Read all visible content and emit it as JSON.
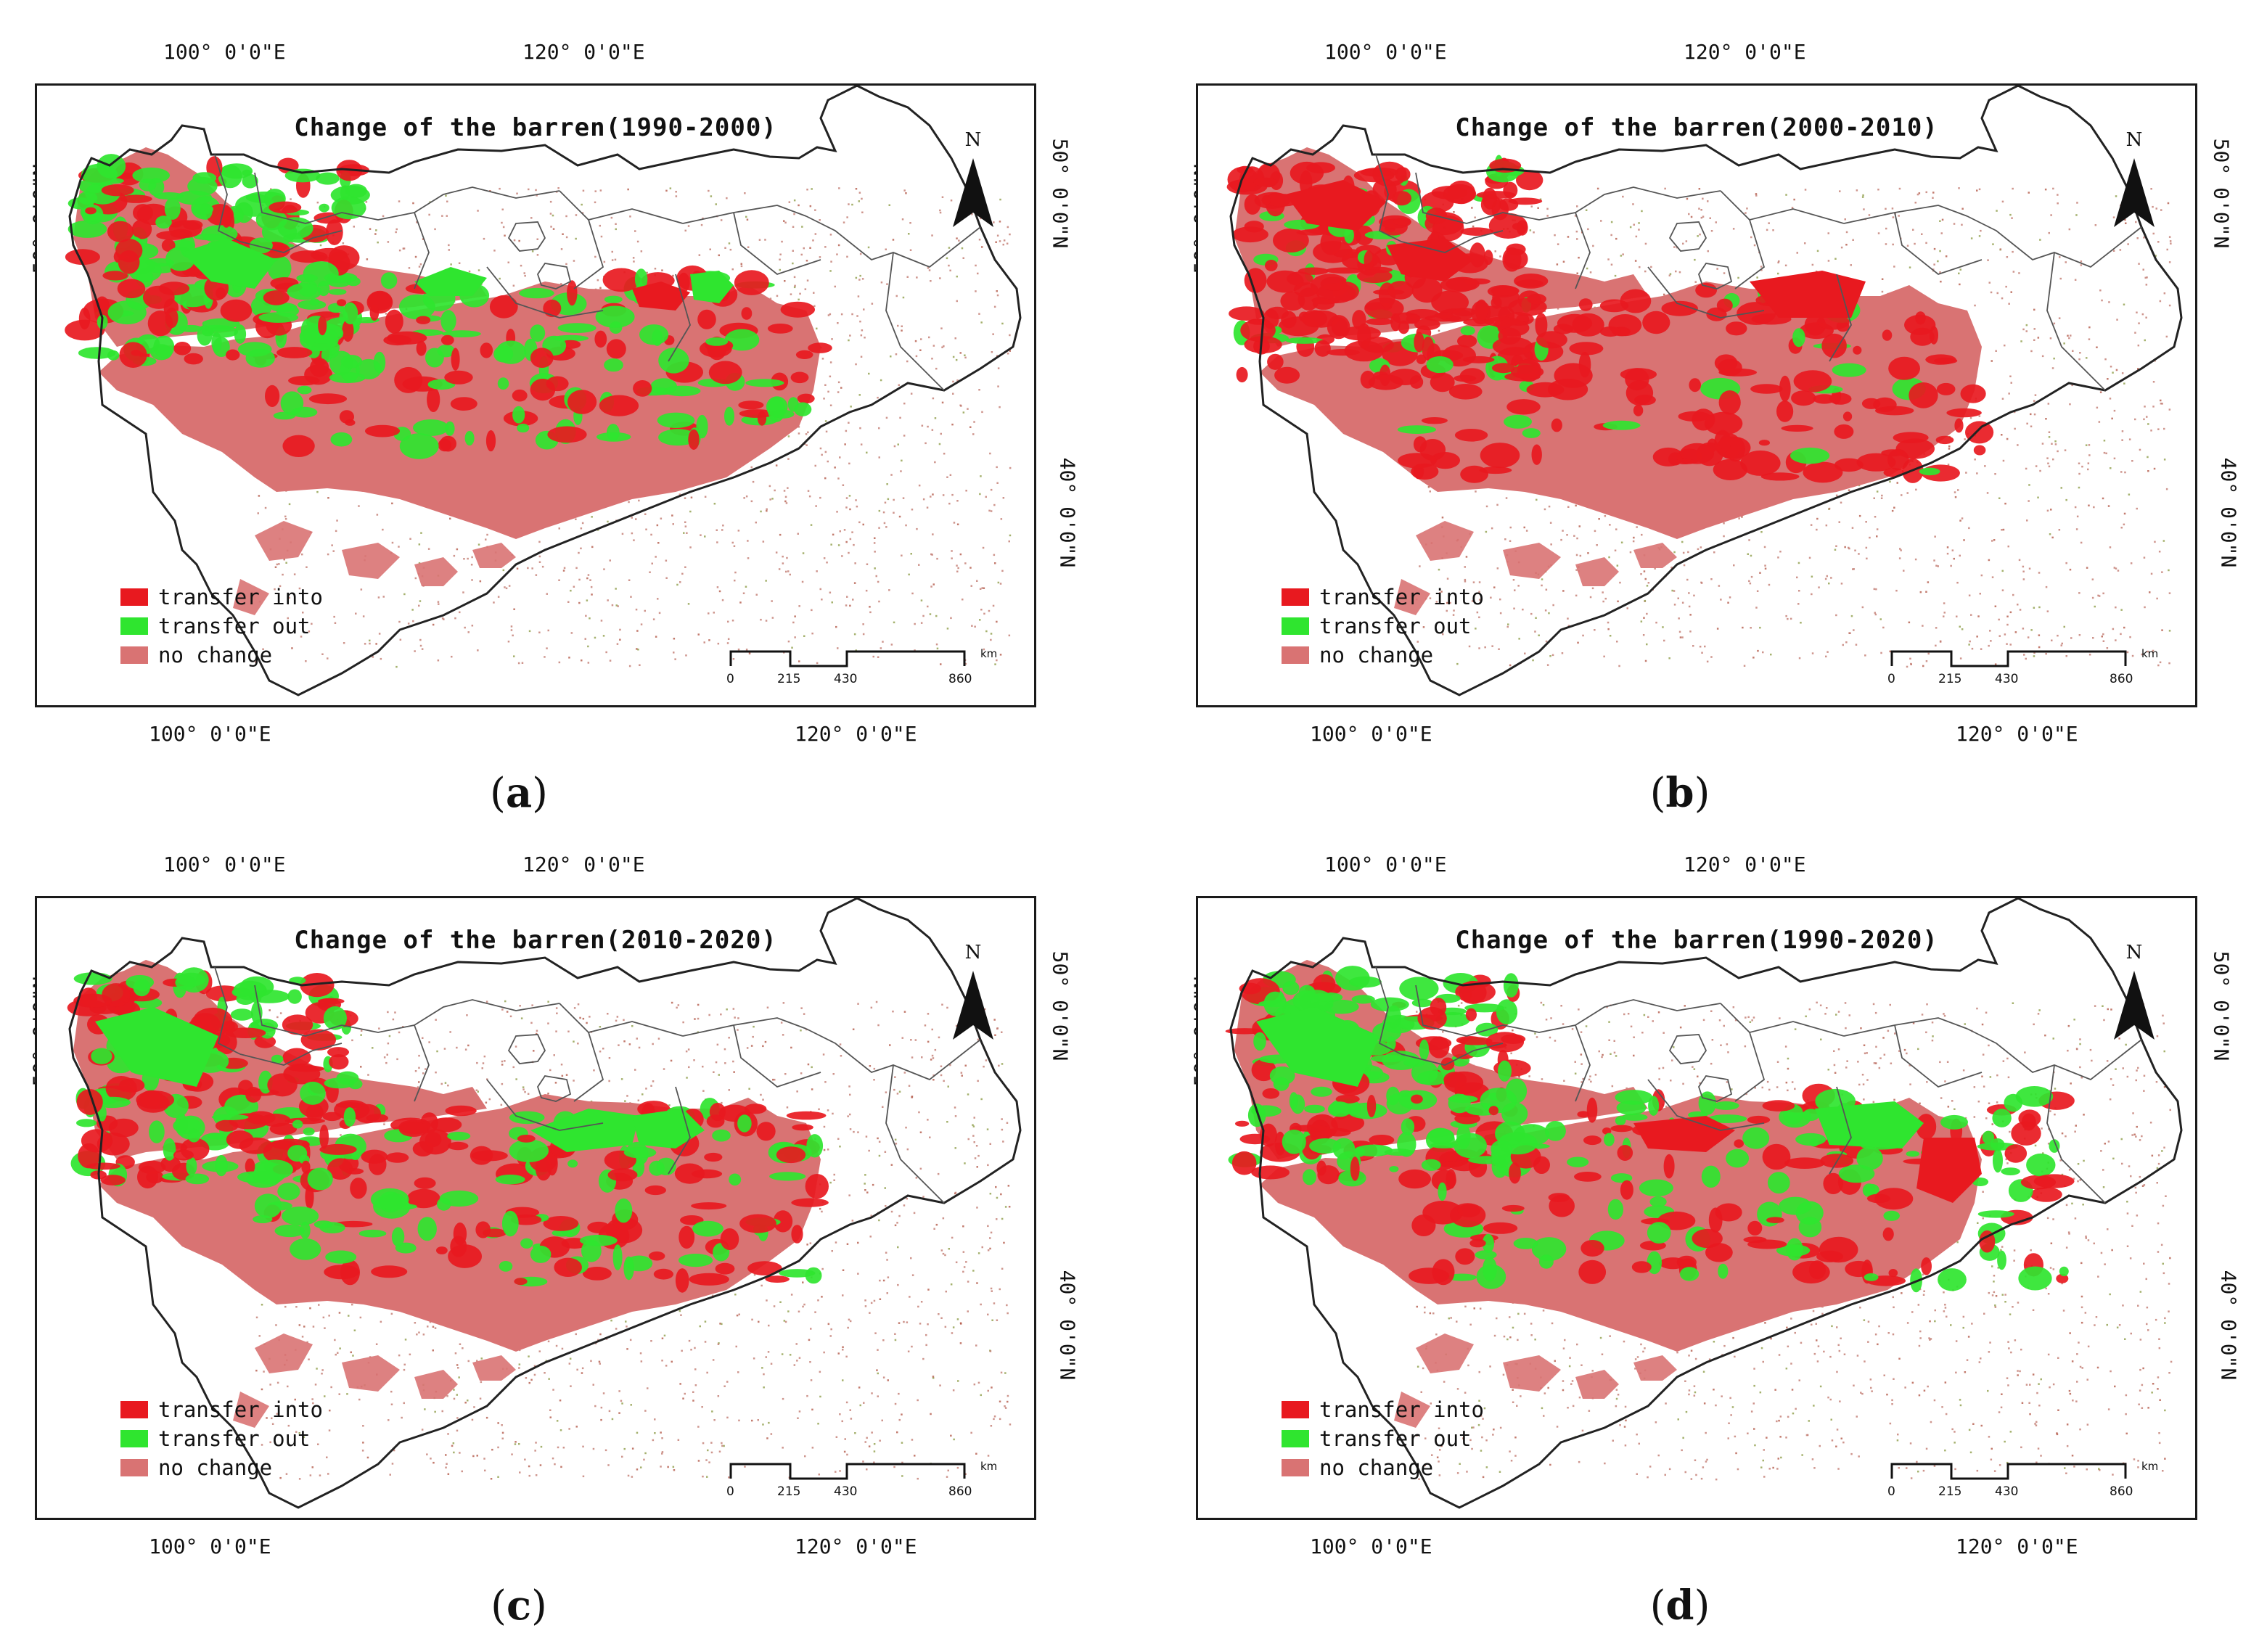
{
  "figure": {
    "panels": [
      {
        "letter": "a",
        "title": "Change of the barren(1990-2000)",
        "variant": 0
      },
      {
        "letter": "b",
        "title": "Change of the barren(2000-2010)",
        "variant": 1
      },
      {
        "letter": "c",
        "title": "Change of the barren(2010-2020)",
        "variant": 2
      },
      {
        "letter": "d",
        "title": "Change of the barren(1990-2020)",
        "variant": 3
      }
    ],
    "graticule": {
      "lon_top_1": "100° 0'0\"E",
      "lon_top_2": "120° 0'0\"E",
      "lon_bottom_1": "100° 0'0\"E",
      "lon_bottom_2": "120° 0'0\"E",
      "lat_50": "50° 0'0\"N",
      "lat_40": "40° 0'0\"N"
    },
    "north_arrow": "N",
    "legend": [
      {
        "label": "transfer into",
        "color": "#e8191f"
      },
      {
        "label": "transfer out",
        "color": "#2fe52f"
      },
      {
        "label": "no change",
        "color": "#d97373"
      }
    ],
    "scale_bar": {
      "ticks": [
        "0",
        "215",
        "430",
        "860"
      ],
      "unit": "km"
    }
  }
}
